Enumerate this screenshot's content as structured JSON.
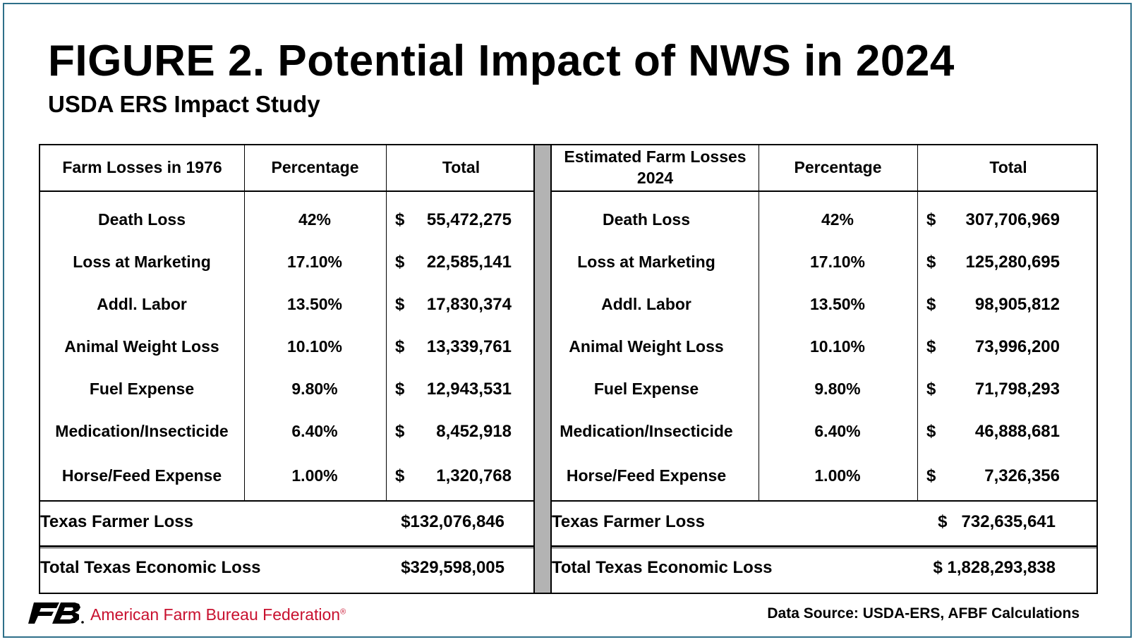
{
  "title": "FIGURE 2. Potential Impact of NWS in 2024",
  "subtitle": "USDA ERS Impact Study",
  "chart_data": [
    {
      "type": "table",
      "columns": [
        "Farm Losses in 1976",
        "Percentage",
        "Total"
      ],
      "rows": [
        {
          "label": "Death Loss",
          "percentage": "42%",
          "total": "55,472,275"
        },
        {
          "label": "Loss at Marketing",
          "percentage": "17.10%",
          "total": "22,585,141"
        },
        {
          "label": "Addl. Labor",
          "percentage": "13.50%",
          "total": "17,830,374"
        },
        {
          "label": "Animal Weight Loss",
          "percentage": "10.10%",
          "total": "13,339,761"
        },
        {
          "label": "Fuel Expense",
          "percentage": "9.80%",
          "total": "12,943,531"
        },
        {
          "label": "Medication/Insecticide",
          "percentage": "6.40%",
          "total": "8,452,918"
        },
        {
          "label": "Horse/Feed Expense",
          "percentage": "1.00%",
          "total": "1,320,768"
        }
      ],
      "currency_symbol": "$",
      "summary": [
        {
          "label": "Texas Farmer Loss",
          "value": "$132,076,846"
        },
        {
          "label": "Total Texas Economic Loss",
          "value": "$329,598,005"
        }
      ]
    },
    {
      "type": "table",
      "columns": [
        "Estimated Farm Losses 2024",
        "Percentage",
        "Total"
      ],
      "rows": [
        {
          "label": "Death Loss",
          "percentage": "42%",
          "total": "307,706,969"
        },
        {
          "label": "Loss at Marketing",
          "percentage": "17.10%",
          "total": "125,280,695"
        },
        {
          "label": "Addl. Labor",
          "percentage": "13.50%",
          "total": "98,905,812"
        },
        {
          "label": "Animal Weight Loss",
          "percentage": "10.10%",
          "total": "73,996,200"
        },
        {
          "label": "Fuel Expense",
          "percentage": "9.80%",
          "total": "71,798,293"
        },
        {
          "label": "Medication/Insecticide",
          "percentage": "6.40%",
          "total": "46,888,681"
        },
        {
          "label": "Horse/Feed Expense",
          "percentage": "1.00%",
          "total": "7,326,356"
        }
      ],
      "currency_symbol": "$",
      "summary": [
        {
          "label": "Texas Farmer Loss",
          "value": "$   732,635,641"
        },
        {
          "label": "Total Texas Economic Loss",
          "value": "$ 1,828,293,838"
        }
      ]
    }
  ],
  "footer": {
    "logo_text": "FB",
    "organization": "American Farm Bureau Federation",
    "registered_mark": "®",
    "source": "Data Source:  USDA-ERS, AFBF Calculations",
    "brand_color": "#c8102e"
  }
}
